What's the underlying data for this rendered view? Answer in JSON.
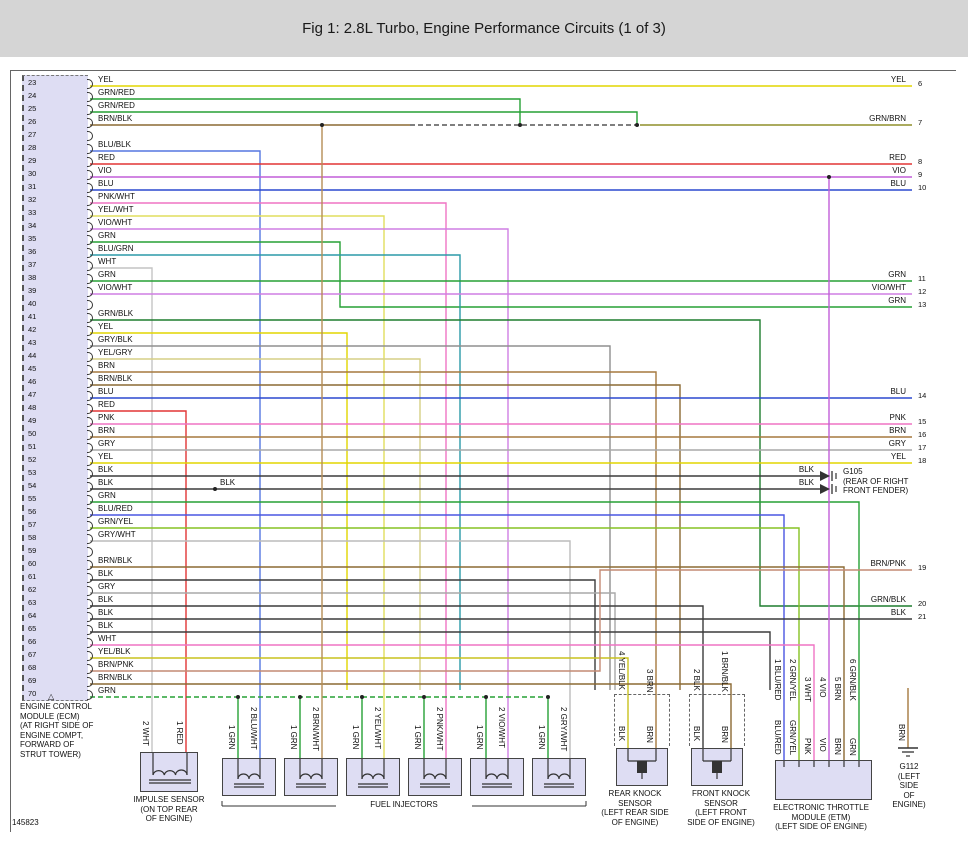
{
  "title": "Fig 1: 2.8L Turbo, Engine Performance Circuits (1 of 3)",
  "figure_id": "145823",
  "connector_marker": "△",
  "ecm": {
    "caption_lines": [
      "ENGINE CONTROL",
      "MODULE (ECM)",
      "(AT RIGHT SIDE OF",
      "ENGINE COMPT,",
      "FORWARD OF",
      "STRUT TOWER)"
    ],
    "pins": [
      {
        "pin": "23",
        "label": "YEL"
      },
      {
        "pin": "24",
        "label": "GRN/RED"
      },
      {
        "pin": "25",
        "label": "GRN/RED"
      },
      {
        "pin": "26",
        "label": "BRN/BLK"
      },
      {
        "pin": "27",
        "label": ""
      },
      {
        "pin": "28",
        "label": "BLU/BLK"
      },
      {
        "pin": "29",
        "label": "RED"
      },
      {
        "pin": "30",
        "label": "VIO"
      },
      {
        "pin": "31",
        "label": "BLU"
      },
      {
        "pin": "32",
        "label": "PNK/WHT"
      },
      {
        "pin": "33",
        "label": "YEL/WHT"
      },
      {
        "pin": "34",
        "label": "VIO/WHT"
      },
      {
        "pin": "35",
        "label": "GRN"
      },
      {
        "pin": "36",
        "label": "BLU/GRN"
      },
      {
        "pin": "37",
        "label": "WHT"
      },
      {
        "pin": "38",
        "label": "GRN"
      },
      {
        "pin": "39",
        "label": "VIO/WHT"
      },
      {
        "pin": "40",
        "label": ""
      },
      {
        "pin": "41",
        "label": "GRN/BLK"
      },
      {
        "pin": "42",
        "label": "YEL"
      },
      {
        "pin": "43",
        "label": "GRY/BLK"
      },
      {
        "pin": "44",
        "label": "YEL/GRY"
      },
      {
        "pin": "45",
        "label": "BRN"
      },
      {
        "pin": "46",
        "label": "BRN/BLK"
      },
      {
        "pin": "47",
        "label": "BLU"
      },
      {
        "pin": "48",
        "label": "RED"
      },
      {
        "pin": "49",
        "label": "PNK"
      },
      {
        "pin": "50",
        "label": "BRN"
      },
      {
        "pin": "51",
        "label": "GRY"
      },
      {
        "pin": "52",
        "label": "YEL"
      },
      {
        "pin": "53",
        "label": "BLK"
      },
      {
        "pin": "54",
        "label": "BLK"
      },
      {
        "pin": "55",
        "label": "GRN"
      },
      {
        "pin": "56",
        "label": "BLU/RED"
      },
      {
        "pin": "57",
        "label": "GRN/YEL"
      },
      {
        "pin": "58",
        "label": "GRY/WHT"
      },
      {
        "pin": "59",
        "label": ""
      },
      {
        "pin": "60",
        "label": "BRN/BLK"
      },
      {
        "pin": "61",
        "label": "BLK"
      },
      {
        "pin": "62",
        "label": "GRY"
      },
      {
        "pin": "63",
        "label": "BLK"
      },
      {
        "pin": "64",
        "label": "BLK"
      },
      {
        "pin": "65",
        "label": "BLK"
      },
      {
        "pin": "66",
        "label": "WHT"
      },
      {
        "pin": "67",
        "label": "YEL/BLK"
      },
      {
        "pin": "68",
        "label": "BRN/PNK"
      },
      {
        "pin": "69",
        "label": "BRN/BLK"
      },
      {
        "pin": "70",
        "label": "GRN"
      }
    ]
  },
  "right_terminals": [
    {
      "label": "YEL",
      "num": "6"
    },
    {
      "label": "GRN/BRN",
      "num": "7"
    },
    {
      "label": "RED",
      "num": "8"
    },
    {
      "label": "VIO",
      "num": "9"
    },
    {
      "label": "BLU",
      "num": "10"
    },
    {
      "label": "GRN",
      "num": "11"
    },
    {
      "label": "VIO/WHT",
      "num": "12"
    },
    {
      "label": "GRN",
      "num": "13"
    },
    {
      "label": "BLU",
      "num": "14"
    },
    {
      "label": "PNK",
      "num": "15"
    },
    {
      "label": "BRN",
      "num": "16"
    },
    {
      "label": "GRY",
      "num": "17"
    },
    {
      "label": "YEL",
      "num": "18"
    },
    {
      "label": "BRN/PNK",
      "num": "19"
    },
    {
      "label": "GRN/BLK",
      "num": "20"
    },
    {
      "label": "BLK",
      "num": "21"
    }
  ],
  "grounds": {
    "g105": {
      "rows": [
        "BLK",
        "BLK"
      ],
      "caption_lines": [
        "G105",
        "(REAR OF RIGHT",
        "FRONT FENDER)"
      ]
    },
    "g112": {
      "wire": "BRN",
      "caption_lines": [
        "G112",
        "(LEFT",
        "SIDE",
        "OF",
        "ENGINE)"
      ]
    }
  },
  "impulse_sensor": {
    "caption_lines": [
      "IMPULSE SENSOR",
      "(ON TOP REAR",
      "OF ENGINE)"
    ],
    "wires": [
      {
        "num": "2",
        "label": "WHT"
      },
      {
        "num": "1",
        "label": "RED"
      }
    ]
  },
  "fuel_injectors": {
    "group_label": "FUEL INJECTORS",
    "injectors": [
      {
        "w1": "1 GRN",
        "w2": "2 BLU/WHT"
      },
      {
        "w1": "1 GRN",
        "w2": "2 BRN/WHT"
      },
      {
        "w1": "1 GRN",
        "w2": "2 YEL/WHT"
      },
      {
        "w1": "1 GRN",
        "w2": "2 PNK/WHT"
      },
      {
        "w1": "1 GRN",
        "w2": "2 VIO/WHT"
      },
      {
        "w1": "1 GRN",
        "w2": "2 GRY/WHT"
      }
    ]
  },
  "knock_sensors": {
    "rear": {
      "caption_lines": [
        "REAR KNOCK",
        "SENSOR",
        "(LEFT REAR SIDE",
        "OF ENGINE)"
      ],
      "upper": [
        "4 YEL/BLK",
        "3 BRN"
      ],
      "lower": [
        "BLK",
        "BRN"
      ]
    },
    "front": {
      "caption_lines": [
        "FRONT KNOCK",
        "SENSOR",
        "(LEFT FRONT",
        "SIDE OF ENGINE)"
      ],
      "upper": [
        "2 BLK",
        "1 BRN/BLK"
      ],
      "lower": [
        "BLK",
        "BRN"
      ]
    }
  },
  "etm": {
    "caption_lines": [
      "ELECTRONIC THROTTLE",
      "MODULE (ETM)",
      "(LEFT SIDE OF ENGINE)"
    ],
    "upper": [
      "1 BLU/RED",
      "2 GRN/YEL",
      "3 WHT",
      "4 VIO",
      "5 BRN",
      "6 GRN/BLK"
    ],
    "lower": [
      "BLU/RED",
      "GRN/YEL",
      "PNK",
      "VIO",
      "BRN",
      "GRN"
    ]
  },
  "extra_labels": {
    "pin54_branch": "BLK"
  },
  "wire_colors": {
    "YEL": "#e2d500",
    "GRN": "#26a135",
    "GRN/RED": "#26a135",
    "BRN": "#a6793f",
    "BRN/BLK": "#8c6a34",
    "BRN/WHT": "#b58d55",
    "RED": "#e23535",
    "VIO": "#c25fd8",
    "BLU": "#2b48cf",
    "BLU/BLK": "#1f35a8",
    "BLU/GRN": "#2b9aa8",
    "BLU/WHT": "#5577e0",
    "BLU/RED": "#4a56e2",
    "PNK": "#ef74c4",
    "PNK/WHT": "#ef74c4",
    "WHT": "#c4c4c4",
    "GRY": "#a9a9a9",
    "GRY/BLK": "#8f8f8f",
    "GRY/WHT": "#bcbcbc",
    "BLK": "#3c3c3c",
    "YEL/WHT": "#e0de5e",
    "YEL/GRY": "#d6cf86",
    "YEL/BLK": "#c9c21e",
    "VIO/WHT": "#cf7fe4",
    "GRN/BLK": "#1e7d2f",
    "GRN/YEL": "#86c223",
    "GRN/BRN": "#8f8f2a",
    "BRN/PNK": "#c48a74"
  }
}
